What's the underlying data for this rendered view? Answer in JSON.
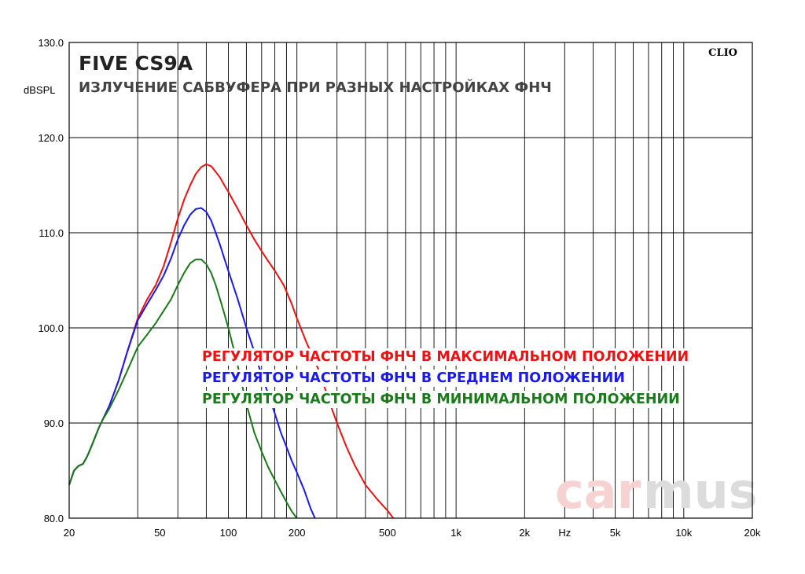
{
  "chart_data": {
    "type": "line",
    "title": "FIVE CS9A",
    "subtitle": "ИЗЛУЧЕНИЕ САБВУФЕРА ПРИ РАЗНЫХ НАСТРОЙКАХ ФНЧ",
    "ylabel": "dBSPL",
    "xlabel": "Hz",
    "x_scale": "log",
    "xlim": [
      20,
      20000
    ],
    "ylim": [
      80,
      130
    ],
    "grid": true,
    "y_ticks": [
      "130.0",
      "120.0",
      "110.0",
      "100.0",
      "90.0",
      "80.0"
    ],
    "x_ticks": [
      "20",
      "50",
      "100",
      "200",
      "500",
      "1k",
      "2k",
      "Hz",
      "5k",
      "10k",
      "20k"
    ],
    "legend_position": "center-right",
    "brand": "CLIO",
    "watermark": [
      "car",
      "mus"
    ],
    "series": [
      {
        "name": "РЕГУЛЯТОР ЧАСТОТЫ ФНЧ В МАКСИМАЛЬНОМ ПОЛОЖЕНИИ",
        "color": "#ee1111",
        "x": [
          20,
          21,
          22,
          23,
          24,
          25,
          27,
          28,
          30,
          33,
          36,
          40,
          44,
          48,
          52,
          56,
          60,
          64,
          68,
          72,
          76,
          80,
          84,
          88,
          92,
          96,
          100,
          110,
          120,
          130,
          145,
          160,
          175,
          190,
          200,
          220,
          250,
          280,
          300,
          330,
          360,
          400,
          450,
          500,
          530
        ],
        "y": [
          83.5,
          85.0,
          85.5,
          85.7,
          86.5,
          87.5,
          89.5,
          90.3,
          91.8,
          94.5,
          97.5,
          101.0,
          103.0,
          104.5,
          106.5,
          109.0,
          111.5,
          113.5,
          115.0,
          116.2,
          116.9,
          117.2,
          117.0,
          116.4,
          115.8,
          115.0,
          114.3,
          112.5,
          110.8,
          109.3,
          107.5,
          106.0,
          104.5,
          102.5,
          101.0,
          98.5,
          95.5,
          92.0,
          90.0,
          87.5,
          85.5,
          83.5,
          82.0,
          80.8,
          80.0
        ]
      },
      {
        "name": "РЕГУЛЯТОР ЧАСТОТЫ ФНЧ В СРЕДНЕМ ПОЛОЖЕНИИ",
        "color": "#1a1aee",
        "x": [
          20,
          21,
          22,
          23,
          24,
          25,
          27,
          28,
          30,
          33,
          36,
          40,
          44,
          48,
          52,
          56,
          60,
          64,
          68,
          72,
          76,
          80,
          84,
          88,
          92,
          96,
          100,
          110,
          120,
          130,
          140,
          150,
          160,
          170,
          180,
          190,
          200,
          215,
          230,
          240
        ],
        "y": [
          83.5,
          85.0,
          85.5,
          85.7,
          86.5,
          87.5,
          89.5,
          90.3,
          91.8,
          94.5,
          97.5,
          100.8,
          102.5,
          104.0,
          105.5,
          107.3,
          109.3,
          110.8,
          111.9,
          112.5,
          112.6,
          112.2,
          111.3,
          110.0,
          108.7,
          107.3,
          106.0,
          103.0,
          100.0,
          97.5,
          95.0,
          93.0,
          91.0,
          89.0,
          87.5,
          86.0,
          84.8,
          83.0,
          81.0,
          80.0
        ]
      },
      {
        "name": "РЕГУЛЯТОР ЧАСТОТЫ ФНЧ В МИНИМАЛЬНОМ ПОЛОЖЕНИИ",
        "color": "#1a7a1a",
        "x": [
          20,
          21,
          22,
          23,
          24,
          25,
          27,
          28,
          30,
          33,
          36,
          40,
          44,
          48,
          52,
          56,
          60,
          64,
          68,
          72,
          76,
          80,
          84,
          88,
          92,
          96,
          100,
          105,
          110,
          120,
          130,
          140,
          150,
          160,
          170,
          180,
          190,
          200
        ],
        "y": [
          83.5,
          85.0,
          85.5,
          85.7,
          86.5,
          87.5,
          89.5,
          90.3,
          91.5,
          93.5,
          95.5,
          98.0,
          99.3,
          100.5,
          101.8,
          103.0,
          104.5,
          105.8,
          106.8,
          107.2,
          107.2,
          106.7,
          105.8,
          104.5,
          103.0,
          101.5,
          100.0,
          98.0,
          96.0,
          92.0,
          89.0,
          87.0,
          85.3,
          84.0,
          82.8,
          81.7,
          80.7,
          80.0
        ]
      }
    ]
  }
}
